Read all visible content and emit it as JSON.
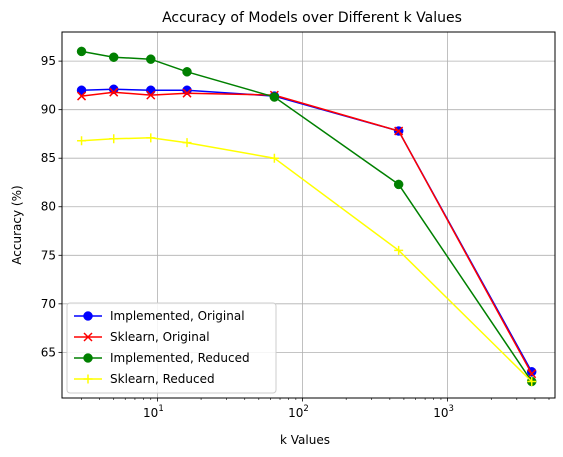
{
  "chart_data": {
    "type": "line",
    "title": "Accuracy of Models over Different k Values",
    "xlabel": "k Values",
    "ylabel": "Accuracy (%)",
    "xscale": "log",
    "xlim": [
      2.2,
      5500
    ],
    "ylim": [
      60.3,
      98.0
    ],
    "x_ticks": [
      {
        "value": 10,
        "base": "10",
        "exp": "1"
      },
      {
        "value": 100,
        "base": "10",
        "exp": "2"
      },
      {
        "value": 1000,
        "base": "10",
        "exp": "3"
      }
    ],
    "y_ticks": [
      65,
      70,
      75,
      80,
      85,
      90,
      95
    ],
    "grid": true,
    "legend_position": "lower-left",
    "series": [
      {
        "name": "Implemented, Original",
        "color": "#0000ff",
        "marker": "circle",
        "x": [
          3,
          5,
          9,
          16,
          64,
          460,
          3800
        ],
        "y": [
          92.0,
          92.1,
          92.0,
          92.0,
          91.4,
          87.8,
          63.0
        ]
      },
      {
        "name": "Sklearn, Original",
        "color": "#ff0000",
        "marker": "x",
        "x": [
          3,
          5,
          9,
          16,
          64,
          460,
          3800
        ],
        "y": [
          91.4,
          91.8,
          91.5,
          91.7,
          91.5,
          87.8,
          62.8
        ]
      },
      {
        "name": "Implemented, Reduced",
        "color": "#008000",
        "marker": "circle",
        "x": [
          3,
          5,
          9,
          16,
          64,
          460,
          3800
        ],
        "y": [
          96.0,
          95.4,
          95.2,
          93.9,
          91.3,
          82.3,
          62.0
        ]
      },
      {
        "name": "Sklearn, Reduced",
        "color": "#ffff00",
        "marker": "plus",
        "x": [
          3,
          5,
          9,
          16,
          64,
          460,
          3800
        ],
        "y": [
          86.8,
          87.0,
          87.1,
          86.6,
          85.0,
          75.5,
          62.0
        ]
      }
    ]
  }
}
